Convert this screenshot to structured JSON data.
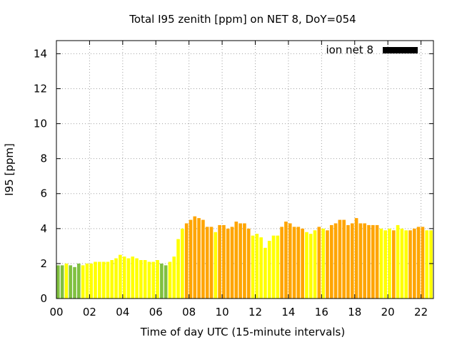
{
  "chart_data": {
    "type": "bar",
    "title": "Total I95 zenith [ppm] on NET 8, DoY=054",
    "xlabel": "Time of day UTC (15-minute intervals)",
    "ylabel": "I95 [ppm]",
    "xlim": [
      0,
      22.75
    ],
    "ylim": [
      0,
      14.75
    ],
    "xticks": [
      0,
      2,
      4,
      6,
      8,
      10,
      12,
      14,
      16,
      18,
      20,
      22
    ],
    "xtick_labels": [
      "00",
      "02",
      "04",
      "06",
      "08",
      "10",
      "12",
      "14",
      "16",
      "18",
      "20",
      "22"
    ],
    "yticks": [
      0,
      2,
      4,
      6,
      8,
      10,
      12,
      14
    ],
    "ytick_labels": [
      "0",
      "2",
      "4",
      "6",
      "8",
      "10",
      "12",
      "14"
    ],
    "grid": true,
    "bar_width_hours": 0.2,
    "legend": {
      "label": "ion net 8",
      "color": "#000000",
      "placement": "top-right"
    },
    "category_colors": {
      "G": "#80c040",
      "Y": "#ffff00",
      "O": "#ffa500"
    },
    "x": [
      0,
      0.25,
      0.5,
      0.75,
      1,
      1.25,
      1.5,
      1.75,
      2,
      2.25,
      2.5,
      2.75,
      3,
      3.25,
      3.5,
      3.75,
      4,
      4.25,
      4.5,
      4.75,
      5,
      5.25,
      5.5,
      5.75,
      6,
      6.25,
      6.5,
      6.75,
      7,
      7.25,
      7.5,
      7.75,
      8,
      8.25,
      8.5,
      8.75,
      9,
      9.25,
      9.5,
      9.75,
      10,
      10.25,
      10.5,
      10.75,
      11,
      11.25,
      11.5,
      11.75,
      12,
      12.25,
      12.5,
      12.75,
      13,
      13.25,
      13.5,
      13.75,
      14,
      14.25,
      14.5,
      14.75,
      15,
      15.25,
      15.5,
      15.75,
      16,
      16.25,
      16.5,
      16.75,
      17,
      17.25,
      17.5,
      17.75,
      18,
      18.25,
      18.5,
      18.75,
      19,
      19.25,
      19.5,
      19.75,
      20,
      20.25,
      20.5,
      20.75,
      21,
      21.25,
      21.5,
      21.75,
      22,
      22.25,
      22.5
    ],
    "values": [
      1.9,
      1.9,
      2.0,
      1.9,
      1.8,
      2.0,
      1.9,
      2.0,
      2.0,
      2.1,
      2.1,
      2.1,
      2.1,
      2.2,
      2.3,
      2.5,
      2.4,
      2.3,
      2.4,
      2.3,
      2.2,
      2.2,
      2.1,
      2.1,
      2.2,
      2.0,
      1.9,
      2.1,
      2.4,
      3.4,
      4.0,
      4.3,
      4.5,
      4.7,
      4.6,
      4.5,
      4.1,
      4.1,
      3.8,
      4.2,
      4.2,
      4.0,
      4.1,
      4.4,
      4.3,
      4.3,
      4.0,
      3.6,
      3.7,
      3.5,
      2.9,
      3.3,
      3.6,
      3.6,
      4.1,
      4.4,
      4.3,
      4.1,
      4.1,
      4.0,
      3.8,
      3.7,
      3.9,
      4.1,
      4.0,
      3.9,
      4.2,
      4.3,
      4.5,
      4.5,
      4.2,
      4.3,
      4.6,
      4.3,
      4.3,
      4.2,
      4.2,
      4.2,
      4.0,
      3.9,
      4.0,
      3.9,
      4.2,
      4.0,
      3.9,
      3.9,
      4.0,
      4.1,
      4.1,
      3.9,
      3.9
    ],
    "categories": [
      "G",
      "G",
      "Y",
      "G",
      "G",
      "G",
      "Y",
      "Y",
      "Y",
      "Y",
      "Y",
      "Y",
      "Y",
      "Y",
      "Y",
      "Y",
      "Y",
      "Y",
      "Y",
      "Y",
      "Y",
      "Y",
      "Y",
      "Y",
      "Y",
      "G",
      "G",
      "Y",
      "Y",
      "Y",
      "Y",
      "O",
      "O",
      "O",
      "O",
      "O",
      "O",
      "O",
      "Y",
      "O",
      "O",
      "O",
      "O",
      "O",
      "O",
      "O",
      "O",
      "Y",
      "Y",
      "Y",
      "Y",
      "Y",
      "Y",
      "Y",
      "O",
      "O",
      "O",
      "O",
      "O",
      "O",
      "Y",
      "Y",
      "Y",
      "O",
      "Y",
      "O",
      "O",
      "O",
      "O",
      "O",
      "O",
      "O",
      "O",
      "O",
      "O",
      "O",
      "O",
      "O",
      "Y",
      "Y",
      "Y",
      "O",
      "Y",
      "Y",
      "Y",
      "O",
      "O",
      "O",
      "O",
      "Y",
      "Y"
    ]
  }
}
